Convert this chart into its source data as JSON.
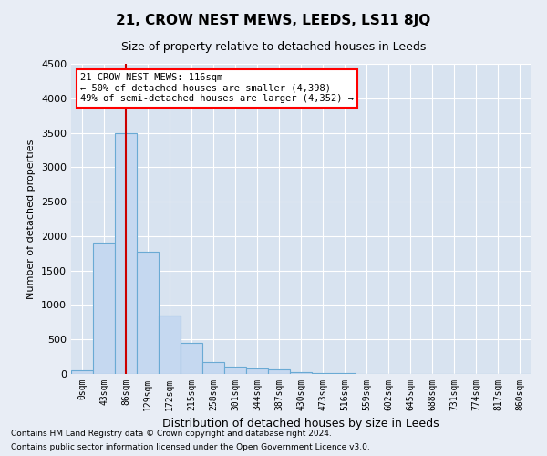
{
  "title": "21, CROW NEST MEWS, LEEDS, LS11 8JQ",
  "subtitle": "Size of property relative to detached houses in Leeds",
  "xlabel": "Distribution of detached houses by size in Leeds",
  "ylabel": "Number of detached properties",
  "bar_labels": [
    "0sqm",
    "43sqm",
    "86sqm",
    "129sqm",
    "172sqm",
    "215sqm",
    "258sqm",
    "301sqm",
    "344sqm",
    "387sqm",
    "430sqm",
    "473sqm",
    "516sqm",
    "559sqm",
    "602sqm",
    "645sqm",
    "688sqm",
    "731sqm",
    "774sqm",
    "817sqm",
    "860sqm"
  ],
  "bar_values": [
    50,
    1900,
    3500,
    1780,
    850,
    450,
    175,
    110,
    80,
    60,
    30,
    15,
    10,
    5,
    3,
    2,
    1,
    1,
    0,
    0,
    0
  ],
  "bar_color": "#c5d8f0",
  "bar_edge_color": "#6aaad4",
  "property_line_x": 2.0,
  "vline_color": "#cc0000",
  "ylim": [
    0,
    4500
  ],
  "annotation_line1": "21 CROW NEST MEWS: 116sqm",
  "annotation_line2": "← 50% of detached houses are smaller (4,398)",
  "annotation_line3": "49% of semi-detached houses are larger (4,352) →",
  "footnote1": "Contains HM Land Registry data © Crown copyright and database right 2024.",
  "footnote2": "Contains public sector information licensed under the Open Government Licence v3.0.",
  "bg_color": "#e8edf5",
  "plot_bg_color": "#d8e3f0",
  "title_fontsize": 11,
  "subtitle_fontsize": 9
}
